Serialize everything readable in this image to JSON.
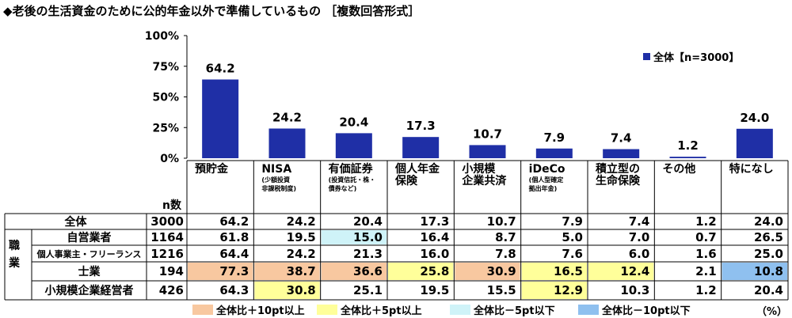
{
  "title": "◆老後の生活資金のために公的年金以外で準備しているもの ［複数回答形式］",
  "colors": {
    "bar": "#1f2fa6",
    "plus10": "#f8c8a0",
    "plus5": "#ffff9a",
    "minus5": "#cff3f8",
    "minus10": "#8fc0ef"
  },
  "chart_data": {
    "type": "bar",
    "categories": [
      "預貯金",
      "NISA",
      "有価証券",
      "個人年金保険",
      "小規模企業共済",
      "iDeCo",
      "積立型の生命保険",
      "その他",
      "特になし"
    ],
    "series": [
      {
        "name": "全体【n=3000】",
        "values": [
          64.2,
          24.2,
          20.4,
          17.3,
          10.7,
          7.9,
          7.4,
          1.2,
          24.0
        ]
      }
    ],
    "value_labels": [
      "64.2",
      "24.2",
      "20.4",
      "17.3",
      "10.7",
      "7.9",
      "7.4",
      "1.2",
      "24.0"
    ],
    "ylim": [
      0,
      100
    ],
    "yticks": [
      "0%",
      "25%",
      "50%",
      "75%",
      "100%"
    ],
    "legend_position": "top-right",
    "grid": false
  },
  "legend": {
    "label": "全体【n=3000】"
  },
  "columns": [
    {
      "line1": "預貯金",
      "line2": "",
      "note1": "",
      "note2": ""
    },
    {
      "line1": "NISA",
      "line2": "",
      "note1": "(少額投資",
      "note2": "非課税制度)"
    },
    {
      "line1": "有価証券",
      "line2": "",
      "note1": "(投資信託・株・",
      "note2": "債券など)"
    },
    {
      "line1": "個人年金",
      "line2": "保険",
      "note1": "",
      "note2": ""
    },
    {
      "line1": "小規模",
      "line2": "企業共済",
      "note1": "",
      "note2": ""
    },
    {
      "line1": "iDeCo",
      "line2": "",
      "note1": "(個人型確定",
      "note2": "拠出年金)"
    },
    {
      "line1": "積立型の",
      "line2": "生命保険",
      "note1": "",
      "note2": ""
    },
    {
      "line1": "その他",
      "line2": "",
      "note1": "",
      "note2": ""
    },
    {
      "line1": "特になし",
      "line2": "",
      "note1": "",
      "note2": ""
    }
  ],
  "n_caption": "n数",
  "job_label": "職業",
  "rows": [
    {
      "label": "全体",
      "n": "3000",
      "values": [
        "64.2",
        "24.2",
        "20.4",
        "17.3",
        "10.7",
        "7.9",
        "7.4",
        "1.2",
        "24.0"
      ],
      "hl": [
        "",
        "",
        "",
        "",
        "",
        "",
        "",
        "",
        ""
      ]
    },
    {
      "label": "自営業者",
      "n": "1164",
      "values": [
        "61.8",
        "19.5",
        "15.0",
        "16.4",
        "8.7",
        "5.0",
        "7.0",
        "0.7",
        "26.5"
      ],
      "hl": [
        "",
        "",
        "minus5",
        "",
        "",
        "",
        "",
        "",
        ""
      ]
    },
    {
      "label": "個人事業主・フリーランス",
      "n": "1216",
      "values": [
        "64.4",
        "24.2",
        "21.3",
        "16.0",
        "7.8",
        "7.6",
        "6.0",
        "1.6",
        "25.0"
      ],
      "hl": [
        "",
        "",
        "",
        "",
        "",
        "",
        "",
        "",
        ""
      ]
    },
    {
      "label": "士業",
      "n": "194",
      "values": [
        "77.3",
        "38.7",
        "36.6",
        "25.8",
        "30.9",
        "16.5",
        "12.4",
        "2.1",
        "10.8"
      ],
      "hl": [
        "plus10",
        "plus10",
        "plus10",
        "plus5",
        "plus10",
        "plus5",
        "plus5",
        "",
        "minus10"
      ]
    },
    {
      "label": "小規模企業経営者",
      "n": "426",
      "values": [
        "64.3",
        "30.8",
        "25.1",
        "19.5",
        "15.5",
        "12.9",
        "10.3",
        "1.2",
        "20.4"
      ],
      "hl": [
        "",
        "plus5",
        "",
        "",
        "",
        "plus5",
        "",
        "",
        ""
      ]
    }
  ],
  "legend_items": [
    {
      "label": "全体比＋10pt以上",
      "key": "plus10"
    },
    {
      "label": "全体比＋5pt以上",
      "key": "plus5"
    },
    {
      "label": "全体比－5pt以下",
      "key": "minus5"
    },
    {
      "label": "全体比－10pt以下",
      "key": "minus10"
    }
  ],
  "unit": "（%）"
}
